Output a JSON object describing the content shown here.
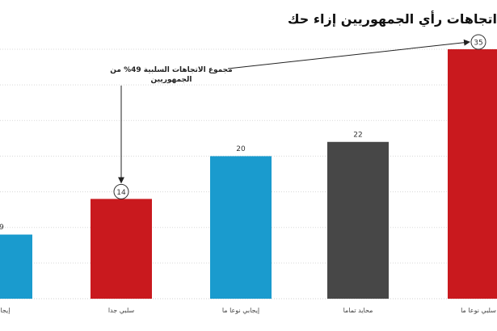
{
  "title": "اتجاهات رأي الجمهوريين إزاء حك",
  "chart_data": {
    "type": "bar",
    "title": "اتجاهات رأي الجمهوريين إزاء حك",
    "categories": [
      "إيجابي",
      "سلبي جدا",
      "إيجابي نوعا ما",
      "محايد تماما",
      "سلبي نوعا ما"
    ],
    "values": [
      9,
      14,
      20,
      22,
      35
    ],
    "colors": [
      "#1a9bce",
      "#c9191e",
      "#1a9bce",
      "#474747",
      "#c9191e"
    ],
    "circled": [
      false,
      true,
      false,
      false,
      true
    ],
    "ylim": [
      0,
      35
    ],
    "grid": true,
    "annotation": {
      "line1": "مجموع الاتجاهات السلبية 49% من",
      "line2": "الجمهوريين"
    }
  }
}
